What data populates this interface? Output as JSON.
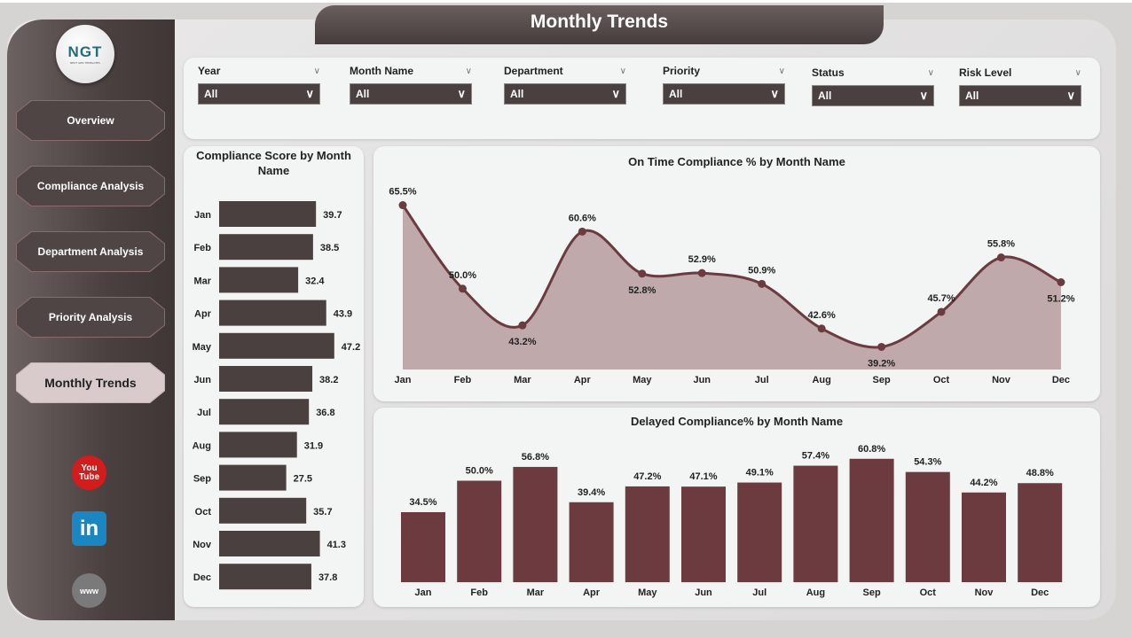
{
  "header": {
    "title": "Monthly Trends"
  },
  "logo": {
    "text": "NGT",
    "subtext": "NEXT GEN TEMPLATES"
  },
  "sidebar": {
    "items": [
      {
        "label": "Overview",
        "active": false
      },
      {
        "label": "Compliance Analysis",
        "active": false
      },
      {
        "label": "Department Analysis",
        "active": false
      },
      {
        "label": "Priority Analysis",
        "active": false
      },
      {
        "label": "Monthly Trends",
        "active": true
      }
    ],
    "social": [
      {
        "icon": "youtube-icon",
        "text": "You Tube",
        "color": "#d41c1c"
      },
      {
        "icon": "linkedin-icon",
        "text": "in",
        "color": "#1a86c2"
      },
      {
        "icon": "globe-icon",
        "text": "www",
        "color": "#7a7a7a"
      }
    ]
  },
  "filters": [
    {
      "label": "Year",
      "value": "All"
    },
    {
      "label": "Month Name",
      "value": "All"
    },
    {
      "label": "Department",
      "value": "All"
    },
    {
      "label": "Priority",
      "value": "All"
    },
    {
      "label": "Status",
      "value": "All"
    },
    {
      "label": "Risk Level",
      "value": "All"
    }
  ],
  "colors": {
    "bar_dark": "#4a4040",
    "line": "#6b3b3f",
    "area": "#bfa9aa",
    "bar_red": "#6b3b3f"
  },
  "chart_data": [
    {
      "type": "bar",
      "orientation": "horizontal",
      "title": "Compliance Score by Month Name",
      "categories": [
        "Jan",
        "Feb",
        "Mar",
        "Apr",
        "May",
        "Jun",
        "Jul",
        "Aug",
        "Sep",
        "Oct",
        "Nov",
        "Dec"
      ],
      "values": [
        39.7,
        38.5,
        32.4,
        43.9,
        47.2,
        38.2,
        36.8,
        31.9,
        27.5,
        35.7,
        41.3,
        37.8
      ],
      "labels": [
        "39.7",
        "38.5",
        "32.4",
        "43.9",
        "47.2",
        "38.2",
        "36.8",
        "31.9",
        "27.5",
        "35.7",
        "41.3",
        "37.8"
      ],
      "xlim": [
        0,
        50
      ]
    },
    {
      "type": "area",
      "title": "On Time Compliance % by Month Name",
      "categories": [
        "Jan",
        "Feb",
        "Mar",
        "Apr",
        "May",
        "Jun",
        "Jul",
        "Aug",
        "Sep",
        "Oct",
        "Nov",
        "Dec"
      ],
      "values": [
        65.5,
        50.0,
        43.2,
        60.6,
        52.8,
        52.9,
        50.9,
        42.6,
        39.2,
        45.7,
        55.8,
        51.2
      ],
      "labels": [
        "65.5%",
        "50.0%",
        "43.2%",
        "60.6%",
        "52.8%",
        "52.9%",
        "50.9%",
        "42.6%",
        "39.2%",
        "45.7%",
        "55.8%",
        "51.2%"
      ],
      "ylim": [
        35,
        70
      ]
    },
    {
      "type": "bar",
      "title": "Delayed Compliance% by Month Name",
      "categories": [
        "Jan",
        "Feb",
        "Mar",
        "Apr",
        "May",
        "Jun",
        "Jul",
        "Aug",
        "Sep",
        "Oct",
        "Nov",
        "Dec"
      ],
      "values": [
        34.5,
        50.0,
        56.8,
        39.4,
        47.2,
        47.1,
        49.1,
        57.4,
        60.8,
        54.3,
        44.2,
        48.8
      ],
      "labels": [
        "34.5%",
        "50.0%",
        "56.8%",
        "39.4%",
        "47.2%",
        "47.1%",
        "49.1%",
        "57.4%",
        "60.8%",
        "54.3%",
        "44.2%",
        "48.8%"
      ],
      "ylim": [
        0,
        65
      ]
    }
  ]
}
